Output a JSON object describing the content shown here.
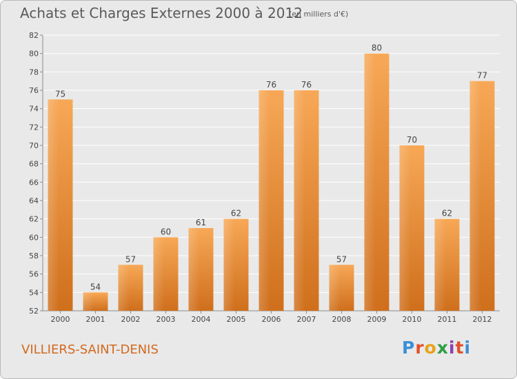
{
  "chart_data": {
    "type": "bar",
    "title": "Achats et Charges Externes 2000 à 2012",
    "subtitle": "(en milliers d'€)",
    "categories": [
      "2000",
      "2001",
      "2002",
      "2003",
      "2004",
      "2005",
      "2006",
      "2007",
      "2008",
      "2009",
      "2010",
      "2011",
      "2012"
    ],
    "values": [
      75,
      54,
      57,
      60,
      61,
      62,
      76,
      76,
      57,
      80,
      70,
      62,
      77
    ],
    "xlabel": "",
    "ylabel": "",
    "ylim": [
      52,
      82
    ],
    "yticks": [
      52,
      54,
      56,
      58,
      60,
      62,
      64,
      66,
      68,
      70,
      72,
      74,
      76,
      78,
      80,
      82
    ],
    "grid": true,
    "bar_color": "#e88a2e"
  },
  "footer": {
    "commune": "VILLIERS-SAINT-DENIS",
    "logo": "Proxiti"
  }
}
